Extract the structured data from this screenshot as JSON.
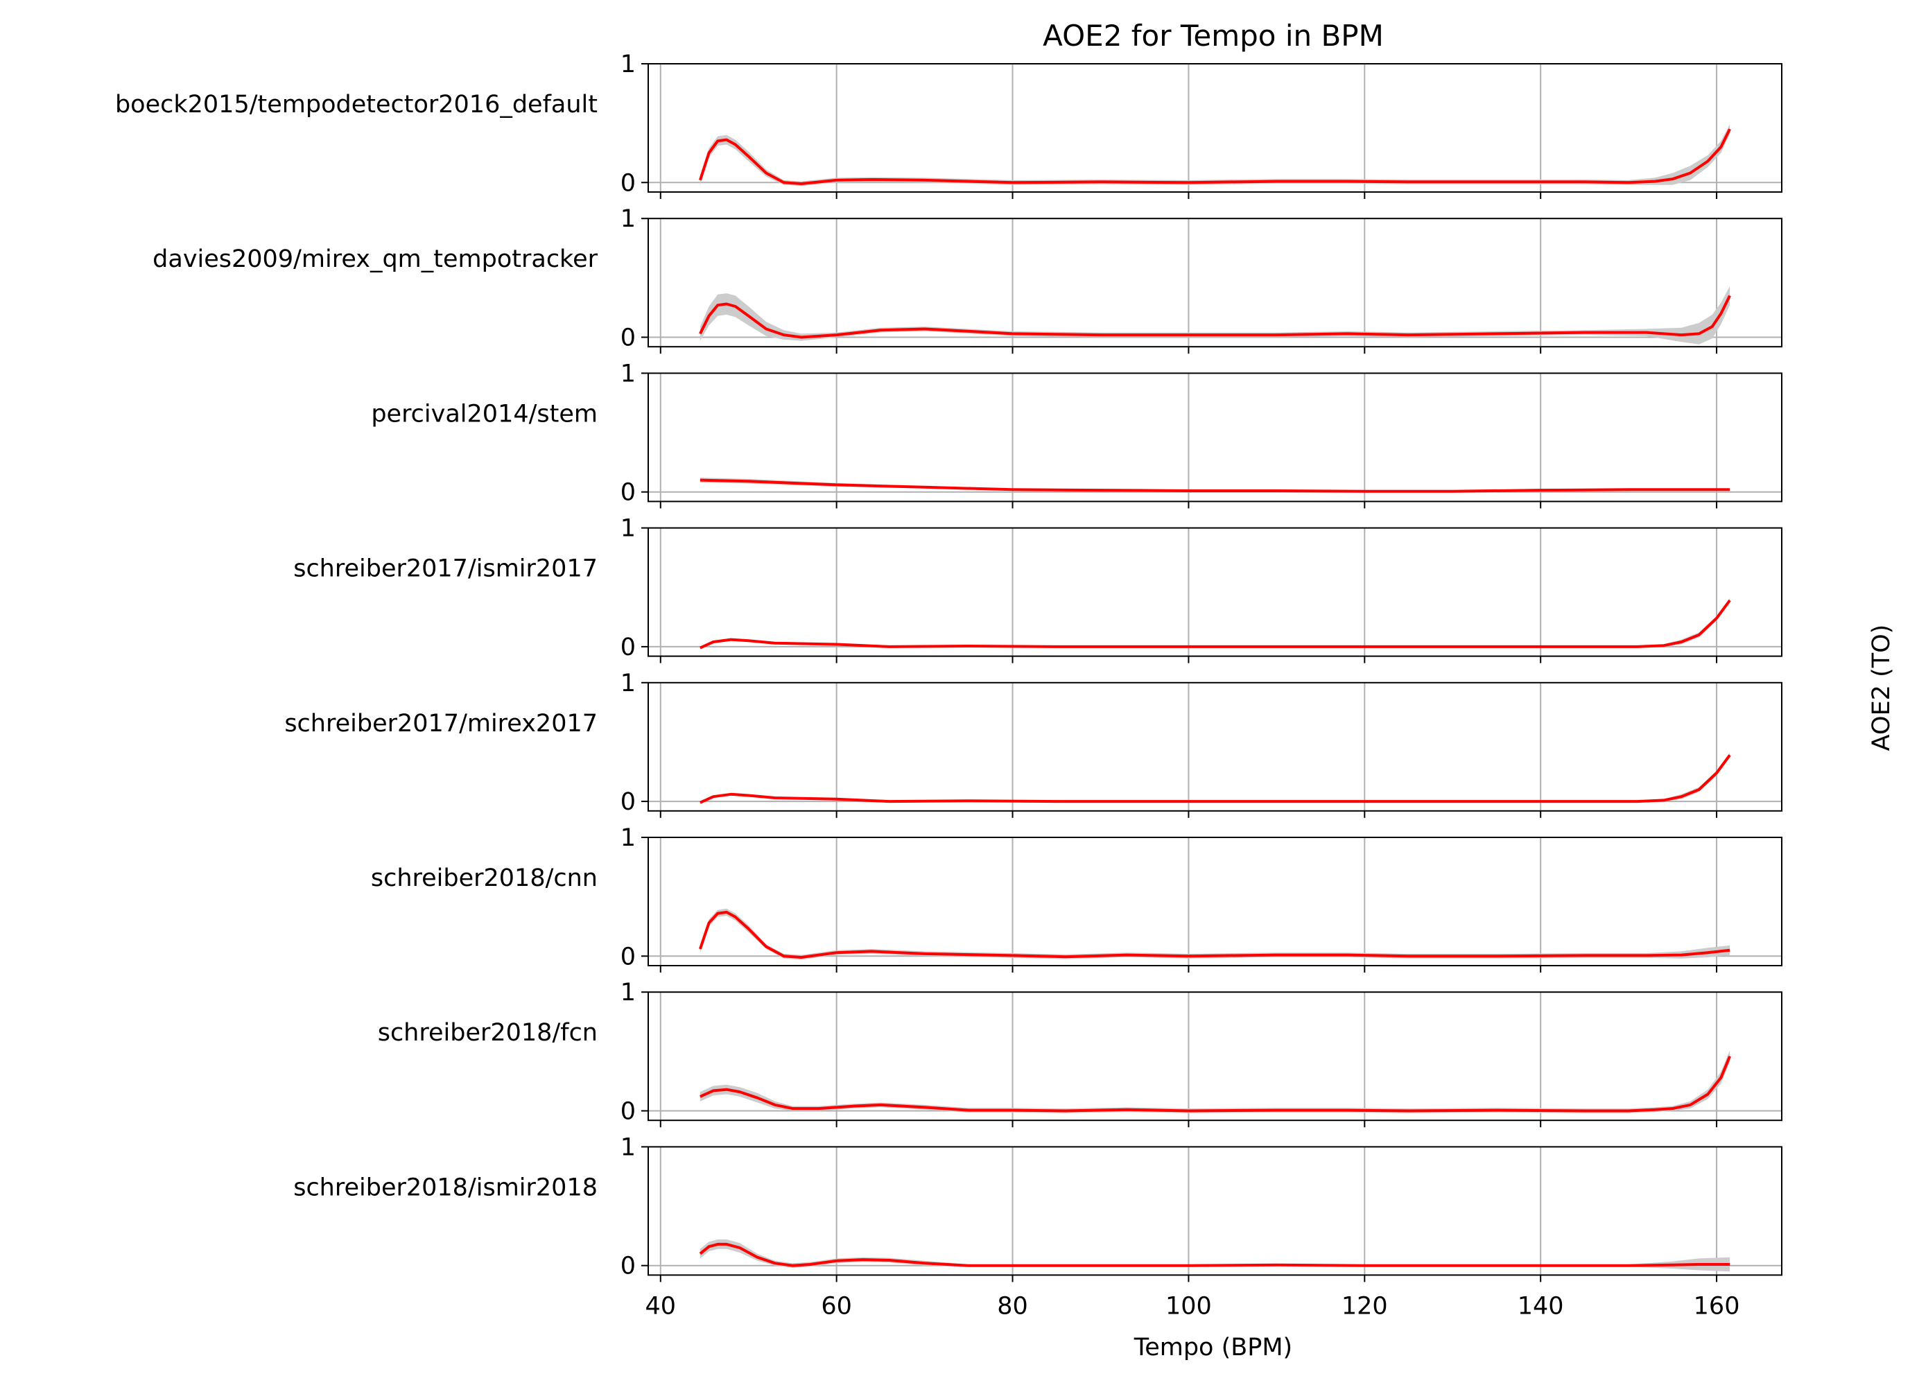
{
  "chart_data": {
    "type": "line",
    "title": "AOE2 for Tempo in BPM",
    "xlabel": "Tempo (BPM)",
    "ylabel": "AOE2 (TO)",
    "xlim": [
      38.6,
      167.4
    ],
    "ylim": [
      -0.08,
      1.0
    ],
    "xticks": [
      40,
      60,
      80,
      100,
      120,
      140,
      160
    ],
    "yticks": [
      0,
      1
    ],
    "grid": "x-only, plus y=0 reference line",
    "colors": {
      "line": "#ff0000",
      "band": "#cccccc",
      "grid": "#b0b0b0"
    },
    "panels": [
      {
        "label": "boeck2015/tempodetector2016_default",
        "points": [
          [
            44.5,
            0.02
          ],
          [
            45.5,
            0.25
          ],
          [
            46.5,
            0.35
          ],
          [
            47.5,
            0.36
          ],
          [
            48.5,
            0.32
          ],
          [
            50,
            0.22
          ],
          [
            52,
            0.08
          ],
          [
            54,
            0.0
          ],
          [
            56,
            -0.01
          ],
          [
            60,
            0.02
          ],
          [
            64,
            0.025
          ],
          [
            70,
            0.02
          ],
          [
            80,
            0.0
          ],
          [
            90,
            0.005
          ],
          [
            100,
            0.0
          ],
          [
            110,
            0.01
          ],
          [
            118,
            0.01
          ],
          [
            125,
            0.005
          ],
          [
            135,
            0.005
          ],
          [
            145,
            0.005
          ],
          [
            150,
            0.0
          ],
          [
            153,
            0.01
          ],
          [
            155,
            0.03
          ],
          [
            157,
            0.08
          ],
          [
            159,
            0.18
          ],
          [
            160.5,
            0.3
          ],
          [
            161.5,
            0.45
          ]
        ],
        "band": [
          0.04,
          0.04,
          0.04,
          0.04,
          0.04,
          0.04,
          0.03,
          0.02,
          0.02,
          0.02,
          0.02,
          0.02,
          0.02,
          0.02,
          0.02,
          0.02,
          0.02,
          0.02,
          0.02,
          0.02,
          0.02,
          0.03,
          0.05,
          0.06,
          0.05,
          0.05,
          0.04
        ]
      },
      {
        "label": "davies2009/mirex_qm_tempotracker",
        "points": [
          [
            44.5,
            0.03
          ],
          [
            45.5,
            0.18
          ],
          [
            46.5,
            0.27
          ],
          [
            47.5,
            0.28
          ],
          [
            48.5,
            0.26
          ],
          [
            50,
            0.18
          ],
          [
            52,
            0.07
          ],
          [
            54,
            0.02
          ],
          [
            56,
            0.0
          ],
          [
            60,
            0.02
          ],
          [
            65,
            0.06
          ],
          [
            70,
            0.07
          ],
          [
            75,
            0.05
          ],
          [
            80,
            0.03
          ],
          [
            90,
            0.02
          ],
          [
            100,
            0.02
          ],
          [
            110,
            0.02
          ],
          [
            118,
            0.03
          ],
          [
            125,
            0.02
          ],
          [
            135,
            0.03
          ],
          [
            145,
            0.04
          ],
          [
            152,
            0.04
          ],
          [
            156,
            0.02
          ],
          [
            158,
            0.03
          ],
          [
            159.5,
            0.09
          ],
          [
            160.5,
            0.2
          ],
          [
            161.5,
            0.35
          ]
        ],
        "band": [
          0.06,
          0.08,
          0.09,
          0.09,
          0.09,
          0.08,
          0.06,
          0.04,
          0.03,
          0.02,
          0.02,
          0.02,
          0.02,
          0.02,
          0.02,
          0.02,
          0.02,
          0.02,
          0.02,
          0.02,
          0.02,
          0.03,
          0.06,
          0.09,
          0.1,
          0.09,
          0.08
        ]
      },
      {
        "label": "percival2014/stem",
        "points": [
          [
            44.5,
            0.1
          ],
          [
            50,
            0.09
          ],
          [
            60,
            0.06
          ],
          [
            70,
            0.04
          ],
          [
            80,
            0.02
          ],
          [
            90,
            0.015
          ],
          [
            100,
            0.01
          ],
          [
            110,
            0.01
          ],
          [
            120,
            0.005
          ],
          [
            130,
            0.005
          ],
          [
            140,
            0.015
          ],
          [
            150,
            0.02
          ],
          [
            161.5,
            0.02
          ]
        ],
        "band": [
          0.02,
          0.02,
          0.015,
          0.01,
          0.01,
          0.01,
          0.01,
          0.01,
          0.01,
          0.01,
          0.01,
          0.01,
          0.01
        ]
      },
      {
        "label": "schreiber2017/ismir2017",
        "points": [
          [
            44.5,
            -0.01
          ],
          [
            46,
            0.04
          ],
          [
            48,
            0.06
          ],
          [
            50,
            0.05
          ],
          [
            53,
            0.03
          ],
          [
            60,
            0.02
          ],
          [
            66,
            0.0
          ],
          [
            75,
            0.005
          ],
          [
            85,
            0.0
          ],
          [
            100,
            0.0
          ],
          [
            115,
            0.0
          ],
          [
            130,
            0.0
          ],
          [
            145,
            0.0
          ],
          [
            151,
            0.0
          ],
          [
            154,
            0.01
          ],
          [
            156,
            0.04
          ],
          [
            158,
            0.1
          ],
          [
            160,
            0.24
          ],
          [
            161.5,
            0.39
          ]
        ],
        "band": [
          0.01,
          0.01,
          0.01,
          0.01,
          0.01,
          0.01,
          0.01,
          0.01,
          0.01,
          0.01,
          0.01,
          0.01,
          0.01,
          0.01,
          0.01,
          0.02,
          0.02,
          0.02,
          0.02
        ]
      },
      {
        "label": "schreiber2017/mirex2017",
        "points": [
          [
            44.5,
            -0.01
          ],
          [
            46,
            0.04
          ],
          [
            48,
            0.06
          ],
          [
            50,
            0.05
          ],
          [
            53,
            0.03
          ],
          [
            60,
            0.02
          ],
          [
            66,
            0.0
          ],
          [
            75,
            0.005
          ],
          [
            85,
            0.0
          ],
          [
            100,
            0.0
          ],
          [
            115,
            0.0
          ],
          [
            130,
            0.0
          ],
          [
            145,
            0.0
          ],
          [
            151,
            0.0
          ],
          [
            154,
            0.01
          ],
          [
            156,
            0.04
          ],
          [
            158,
            0.1
          ],
          [
            160,
            0.24
          ],
          [
            161.5,
            0.39
          ]
        ],
        "band": [
          0.01,
          0.01,
          0.01,
          0.01,
          0.01,
          0.01,
          0.01,
          0.01,
          0.01,
          0.01,
          0.01,
          0.01,
          0.01,
          0.01,
          0.01,
          0.02,
          0.02,
          0.02,
          0.02
        ]
      },
      {
        "label": "schreiber2018/cnn",
        "points": [
          [
            44.5,
            0.06
          ],
          [
            45.5,
            0.28
          ],
          [
            46.5,
            0.36
          ],
          [
            47.5,
            0.37
          ],
          [
            48.5,
            0.33
          ],
          [
            50,
            0.23
          ],
          [
            52,
            0.08
          ],
          [
            54,
            0.0
          ],
          [
            56,
            -0.01
          ],
          [
            60,
            0.03
          ],
          [
            64,
            0.04
          ],
          [
            70,
            0.02
          ],
          [
            80,
            0.005
          ],
          [
            86,
            -0.005
          ],
          [
            93,
            0.01
          ],
          [
            100,
            0.0
          ],
          [
            110,
            0.01
          ],
          [
            118,
            0.01
          ],
          [
            125,
            0.0
          ],
          [
            135,
            0.0
          ],
          [
            145,
            0.005
          ],
          [
            152,
            0.005
          ],
          [
            156,
            0.01
          ],
          [
            159,
            0.03
          ],
          [
            161.5,
            0.05
          ]
        ],
        "band": [
          0.03,
          0.03,
          0.03,
          0.03,
          0.03,
          0.03,
          0.02,
          0.02,
          0.02,
          0.02,
          0.02,
          0.02,
          0.02,
          0.02,
          0.02,
          0.02,
          0.02,
          0.02,
          0.02,
          0.02,
          0.02,
          0.02,
          0.03,
          0.04,
          0.04
        ]
      },
      {
        "label": "schreiber2018/fcn",
        "points": [
          [
            44.5,
            0.12
          ],
          [
            46,
            0.17
          ],
          [
            47.5,
            0.18
          ],
          [
            49,
            0.16
          ],
          [
            51,
            0.11
          ],
          [
            53,
            0.05
          ],
          [
            55,
            0.02
          ],
          [
            58,
            0.02
          ],
          [
            62,
            0.04
          ],
          [
            65,
            0.05
          ],
          [
            70,
            0.03
          ],
          [
            75,
            0.005
          ],
          [
            80,
            0.005
          ],
          [
            86,
            0.0
          ],
          [
            93,
            0.01
          ],
          [
            100,
            0.0
          ],
          [
            110,
            0.005
          ],
          [
            118,
            0.005
          ],
          [
            125,
            0.0
          ],
          [
            135,
            0.005
          ],
          [
            145,
            0.0
          ],
          [
            150,
            0.0
          ],
          [
            153,
            0.01
          ],
          [
            155,
            0.02
          ],
          [
            157,
            0.05
          ],
          [
            159,
            0.14
          ],
          [
            160.5,
            0.28
          ],
          [
            161.5,
            0.46
          ]
        ],
        "band": [
          0.04,
          0.04,
          0.04,
          0.04,
          0.04,
          0.03,
          0.02,
          0.02,
          0.02,
          0.02,
          0.02,
          0.02,
          0.02,
          0.02,
          0.02,
          0.02,
          0.02,
          0.02,
          0.02,
          0.02,
          0.02,
          0.02,
          0.02,
          0.02,
          0.03,
          0.04,
          0.05,
          0.05
        ]
      },
      {
        "label": "schreiber2018/ismir2018",
        "points": [
          [
            44.5,
            0.1
          ],
          [
            45.5,
            0.16
          ],
          [
            46.5,
            0.18
          ],
          [
            47.5,
            0.18
          ],
          [
            49,
            0.15
          ],
          [
            51,
            0.07
          ],
          [
            53,
            0.02
          ],
          [
            55,
            0.0
          ],
          [
            57,
            0.01
          ],
          [
            60,
            0.04
          ],
          [
            63,
            0.05
          ],
          [
            66,
            0.045
          ],
          [
            70,
            0.02
          ],
          [
            75,
            0.0
          ],
          [
            80,
            0.0
          ],
          [
            90,
            0.0
          ],
          [
            100,
            0.0
          ],
          [
            110,
            0.005
          ],
          [
            120,
            0.0
          ],
          [
            130,
            0.0
          ],
          [
            140,
            0.0
          ],
          [
            150,
            0.0
          ],
          [
            155,
            0.005
          ],
          [
            158,
            0.01
          ],
          [
            161.5,
            0.01
          ]
        ],
        "band": [
          0.04,
          0.04,
          0.04,
          0.04,
          0.04,
          0.03,
          0.02,
          0.02,
          0.02,
          0.02,
          0.02,
          0.02,
          0.02,
          0.01,
          0.01,
          0.01,
          0.01,
          0.01,
          0.01,
          0.01,
          0.01,
          0.01,
          0.03,
          0.05,
          0.06
        ]
      }
    ]
  }
}
